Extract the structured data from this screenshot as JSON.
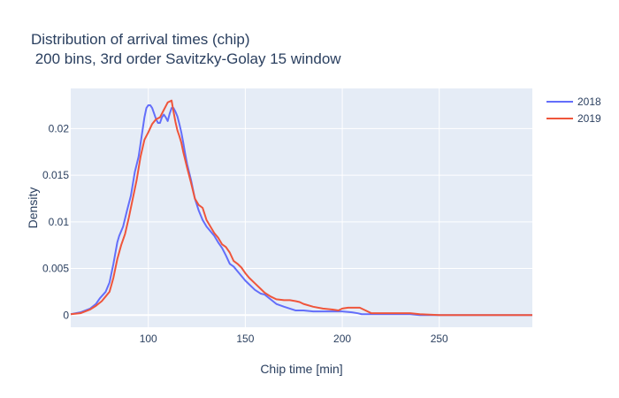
{
  "chart_data": {
    "type": "line",
    "title_line1": "Distribution of arrival times (chip)",
    "title_line2": " 200 bins, 3rd order Savitzky-Golay 15 window",
    "xlabel": "Chip time [min]",
    "ylabel": "Density",
    "xlim": [
      60,
      298
    ],
    "ylim": [
      -0.0013,
      0.0243
    ],
    "x_ticks": [
      100,
      150,
      200,
      250
    ],
    "x_tick_labels": [
      "100",
      "150",
      "200",
      "250"
    ],
    "y_ticks": [
      0,
      0.005,
      0.01,
      0.015,
      0.02
    ],
    "y_tick_labels": [
      "0",
      "0.005",
      "0.01",
      "0.015",
      "0.02"
    ],
    "grid": true,
    "legend_position": "top-right",
    "series": [
      {
        "name": "2018",
        "color": "#636efa",
        "x": [
          60,
          65,
          70,
          73,
          75,
          78,
          80,
          82,
          84,
          85,
          87,
          89,
          91,
          93,
          95,
          97,
          98,
          99,
          100,
          101,
          102,
          103,
          104,
          105,
          106,
          107,
          108,
          109,
          110,
          111,
          112,
          113,
          114,
          115,
          116,
          117,
          118,
          119,
          120,
          122,
          124,
          126,
          128,
          130,
          132,
          134,
          136,
          138,
          140,
          142,
          144,
          146,
          148,
          150,
          152,
          155,
          158,
          160,
          163,
          166,
          170,
          173,
          176,
          180,
          185,
          190,
          195,
          200,
          205,
          208,
          210,
          215,
          220,
          225,
          230,
          235,
          240,
          250,
          260,
          270,
          280,
          290,
          298
        ],
        "y": [
          0.0001,
          0.0003,
          0.0007,
          0.0012,
          0.0018,
          0.0025,
          0.0035,
          0.0055,
          0.0078,
          0.0085,
          0.0095,
          0.0112,
          0.0128,
          0.0153,
          0.017,
          0.0198,
          0.0212,
          0.0222,
          0.0225,
          0.0225,
          0.0222,
          0.0216,
          0.021,
          0.0206,
          0.0206,
          0.0212,
          0.0215,
          0.0212,
          0.0208,
          0.0216,
          0.0222,
          0.0222,
          0.0218,
          0.0213,
          0.0205,
          0.0196,
          0.0185,
          0.0173,
          0.0162,
          0.0145,
          0.0125,
          0.0112,
          0.0102,
          0.0095,
          0.009,
          0.0085,
          0.0078,
          0.0072,
          0.0064,
          0.0055,
          0.0052,
          0.0047,
          0.0042,
          0.0037,
          0.0033,
          0.0027,
          0.0023,
          0.0022,
          0.0017,
          0.0012,
          0.0009,
          0.0007,
          0.0005,
          0.0005,
          0.0004,
          0.0004,
          0.0004,
          0.0004,
          0.0003,
          0.0002,
          0.0001,
          0.0001,
          0.0001,
          0.0001,
          0.0001,
          0.0001,
          0.0,
          0.0,
          0.0,
          0.0,
          0.0,
          0.0,
          0.0
        ]
      },
      {
        "name": "2019",
        "color": "#ef553b",
        "x": [
          60,
          65,
          70,
          73,
          76,
          78,
          80,
          82,
          84,
          86,
          88,
          90,
          92,
          94,
          96,
          98,
          100,
          102,
          104,
          106,
          108,
          109,
          110,
          111,
          112,
          113,
          114,
          115,
          116,
          117,
          118,
          120,
          122,
          124,
          126,
          128,
          130,
          132,
          134,
          136,
          138,
          140,
          142,
          144,
          146,
          148,
          150,
          152,
          155,
          158,
          160,
          163,
          166,
          170,
          173,
          176,
          178,
          180,
          185,
          190,
          195,
          198,
          200,
          203,
          206,
          209,
          212,
          215,
          220,
          225,
          230,
          235,
          240,
          250,
          260,
          270,
          280,
          290,
          298
        ],
        "y": [
          0.0001,
          0.0002,
          0.0006,
          0.001,
          0.0015,
          0.002,
          0.0025,
          0.004,
          0.006,
          0.0075,
          0.0087,
          0.0105,
          0.0125,
          0.0145,
          0.017,
          0.0188,
          0.0196,
          0.0205,
          0.021,
          0.0212,
          0.022,
          0.0224,
          0.0228,
          0.0229,
          0.023,
          0.0218,
          0.0207,
          0.0198,
          0.0192,
          0.0185,
          0.0175,
          0.0158,
          0.0142,
          0.0125,
          0.0118,
          0.0115,
          0.0102,
          0.0095,
          0.0088,
          0.0083,
          0.0076,
          0.0073,
          0.0067,
          0.0058,
          0.0055,
          0.0051,
          0.0045,
          0.004,
          0.0034,
          0.0028,
          0.0024,
          0.002,
          0.0017,
          0.0016,
          0.0016,
          0.0015,
          0.0014,
          0.0012,
          0.0009,
          0.0007,
          0.0006,
          0.0005,
          0.0007,
          0.0008,
          0.0008,
          0.0008,
          0.0005,
          0.0002,
          0.0002,
          0.0002,
          0.0002,
          0.0002,
          0.0001,
          0.0,
          0.0,
          0.0,
          0.0,
          0.0,
          0.0
        ]
      }
    ]
  }
}
